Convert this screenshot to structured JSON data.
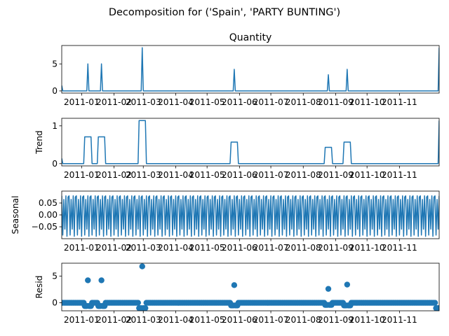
{
  "chart_data": {
    "type": "line",
    "suptitle": "Decomposition for ('Spain', 'PARTY BUNTING')",
    "x_start": "2010-12-13",
    "x_end": "2011-12-09",
    "x_tick_labels": [
      "2011-01",
      "2011-02",
      "2011-03",
      "2011-04",
      "2011-05",
      "2011-06",
      "2011-07",
      "2011-08",
      "2011-09",
      "2011-10",
      "2011-11"
    ],
    "x_ticks": [
      "2011-01-01",
      "2011-02-01",
      "2011-03-01",
      "2011-04-01",
      "2011-05-01",
      "2011-06-01",
      "2011-07-01",
      "2011-08-01",
      "2011-09-01",
      "2011-10-01",
      "2011-11-01"
    ],
    "line_color": "#1f77b4",
    "panels": [
      {
        "key": "observed",
        "title": "Quantity",
        "ylabel": "",
        "ylim": [
          -0.4,
          8.4
        ],
        "yticks": [
          0,
          5
        ],
        "ytick_labels": [
          "0",
          "5"
        ],
        "style": "line",
        "baseline": 0,
        "initial": 1,
        "spikes": [
          {
            "date": "2011-01-07",
            "value": 5
          },
          {
            "date": "2011-01-20",
            "value": 5
          },
          {
            "date": "2011-02-28",
            "value": 8
          },
          {
            "date": "2011-05-27",
            "value": 4
          },
          {
            "date": "2011-08-25",
            "value": 3
          },
          {
            "date": "2011-09-12",
            "value": 4
          },
          {
            "date": "2011-12-09",
            "value": 8
          }
        ]
      },
      {
        "key": "trend",
        "title": "",
        "ylabel": "Trend",
        "ylim": [
          -0.06,
          1.2
        ],
        "yticks": [
          0,
          1
        ],
        "ytick_labels": [
          "0",
          "1"
        ],
        "style": "line",
        "baseline": 0,
        "initial": 0.14,
        "plateaus": [
          {
            "start": "2011-01-04",
            "end": "2011-01-10",
            "value": 0.71
          },
          {
            "start": "2011-01-17",
            "end": "2011-01-23",
            "value": 0.71
          },
          {
            "start": "2011-02-25",
            "end": "2011-03-03",
            "value": 1.14
          },
          {
            "start": "2011-05-24",
            "end": "2011-05-30",
            "value": 0.57
          },
          {
            "start": "2011-08-22",
            "end": "2011-08-28",
            "value": 0.43
          },
          {
            "start": "2011-09-09",
            "end": "2011-09-15",
            "value": 0.57
          }
        ],
        "end_value": 1.14
      },
      {
        "key": "seasonal",
        "title": "",
        "ylabel": "Seasonal",
        "ylim": [
          -0.1,
          0.1
        ],
        "yticks": [
          0.05,
          0.0,
          -0.05
        ],
        "ytick_labels": [
          "0.05",
          "0.00",
          "−0.05"
        ],
        "style": "line",
        "period_days": 7,
        "pattern": [
          0.08,
          -0.085,
          0.065,
          -0.06,
          0.08,
          -0.09,
          0.075
        ]
      },
      {
        "key": "resid",
        "title": "",
        "ylabel": "Resid",
        "ylim": [
          -1.5,
          7.4
        ],
        "yticks": [
          0,
          5
        ],
        "ytick_labels": [
          "0",
          "5"
        ],
        "style": "scatter",
        "outliers": [
          {
            "date": "2011-01-07",
            "value": 4.2
          },
          {
            "date": "2011-01-20",
            "value": 4.2
          },
          {
            "date": "2011-02-28",
            "value": 6.8
          },
          {
            "date": "2011-05-27",
            "value": 3.3
          },
          {
            "date": "2011-08-25",
            "value": 2.6
          },
          {
            "date": "2011-09-12",
            "value": 3.4
          }
        ],
        "dips": [
          {
            "start": "2011-01-04",
            "end": "2011-01-10",
            "value": -0.6
          },
          {
            "start": "2011-01-17",
            "end": "2011-01-23",
            "value": -0.6
          },
          {
            "start": "2011-02-25",
            "end": "2011-03-03",
            "value": -1.0
          },
          {
            "start": "2011-05-24",
            "end": "2011-05-30",
            "value": -0.5
          },
          {
            "start": "2011-08-22",
            "end": "2011-08-28",
            "value": -0.4
          },
          {
            "start": "2011-09-09",
            "end": "2011-09-15",
            "value": -0.5
          },
          {
            "start": "2011-12-06",
            "end": "2011-12-09",
            "value": -1.0
          }
        ]
      }
    ]
  }
}
